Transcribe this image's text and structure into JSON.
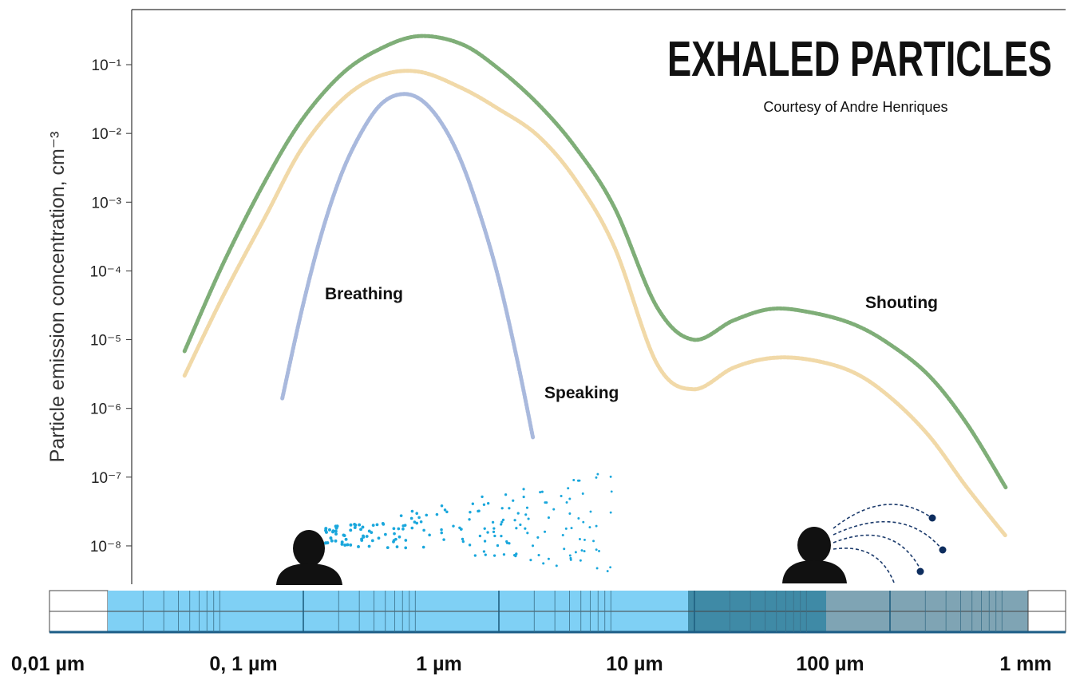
{
  "chart_data": {
    "type": "line",
    "title": "EXHALED PARTICLES",
    "subtitle": "Courtesy of Andre Henriques",
    "ylabel": "Particle emission concentration, cm⁻³",
    "xscale": "log",
    "yscale": "log",
    "xlim": [
      0.01,
      1600
    ],
    "ylim": [
      3e-09,
      0.6
    ],
    "xticks": [
      {
        "value": 0.01,
        "label": "0,01 µm"
      },
      {
        "value": 0.1,
        "label": "0, 1 µm"
      },
      {
        "value": 1,
        "label": "1 µm"
      },
      {
        "value": 10,
        "label": "10 µm"
      },
      {
        "value": 100,
        "label": "100 µm"
      },
      {
        "value": 1000,
        "label": "1 mm"
      }
    ],
    "yticks": [
      {
        "value": 1e-08,
        "label": "10⁻⁸"
      },
      {
        "value": 1e-07,
        "label": "10⁻⁷"
      },
      {
        "value": 1e-06,
        "label": "10⁻⁶"
      },
      {
        "value": 1e-05,
        "label": "10⁻⁵"
      },
      {
        "value": 0.0001,
        "label": "10⁻⁴"
      },
      {
        "value": 0.001,
        "label": "10⁻³"
      },
      {
        "value": 0.01,
        "label": "10⁻²"
      },
      {
        "value": 0.1,
        "label": "10⁻¹"
      }
    ],
    "series": [
      {
        "name": "Breathing",
        "color": "#a9b9dd",
        "x": [
          0.158,
          0.2,
          0.251,
          0.316,
          0.398,
          0.501,
          0.631,
          0.794,
          1,
          1.26,
          1.58,
          2.0,
          2.51,
          3.02
        ],
        "values": [
          1.4e-06,
          2.9e-05,
          0.00035,
          0.0025,
          0.01,
          0.026,
          0.037,
          0.032,
          0.016,
          0.0048,
          0.00083,
          8.5e-05,
          5.1e-06,
          3.8e-07
        ]
      },
      {
        "name": "Speaking",
        "color": "#f1d9a8",
        "x": [
          0.05,
          0.079,
          0.13,
          0.2,
          0.32,
          0.5,
          0.79,
          1.3,
          2,
          3.2,
          5,
          7.9,
          13,
          20,
          32,
          50,
          79,
          130,
          200,
          320,
          500,
          790
        ],
        "values": [
          3e-06,
          4.4e-05,
          0.00063,
          0.0062,
          0.031,
          0.069,
          0.079,
          0.046,
          0.023,
          0.0093,
          0.0021,
          0.00022,
          4.5e-06,
          1.9e-06,
          3.9e-06,
          5.4e-06,
          5.1e-06,
          3.4e-06,
          1.5e-06,
          4e-07,
          7.1e-08,
          1.4e-08
        ]
      },
      {
        "name": "Shouting",
        "color": "#7fae78",
        "x": [
          0.05,
          0.079,
          0.13,
          0.2,
          0.32,
          0.5,
          0.79,
          1.3,
          2,
          3.2,
          5,
          7.9,
          13,
          20,
          32,
          50,
          79,
          130,
          200,
          320,
          500,
          790
        ],
        "values": [
          6.8e-06,
          0.00013,
          0.0021,
          0.016,
          0.074,
          0.17,
          0.26,
          0.2,
          0.089,
          0.027,
          0.0062,
          0.00083,
          3e-05,
          1e-05,
          1.9e-05,
          2.8e-05,
          2.5e-05,
          1.7e-05,
          8.7e-06,
          3e-06,
          6e-07,
          7.1e-08
        ]
      }
    ]
  }
}
